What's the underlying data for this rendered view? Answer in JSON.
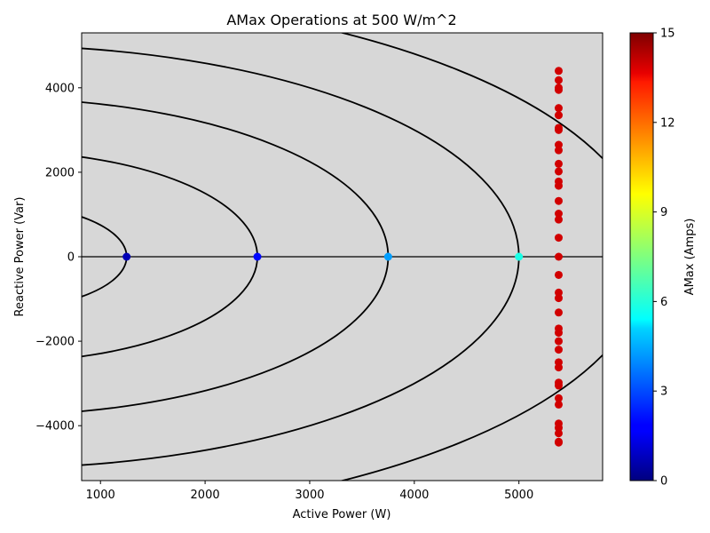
{
  "chart_data": {
    "type": "scatter",
    "title": "AMax Operations at 500 W/m^2",
    "xlabel": "Active Power (W)",
    "ylabel": "Reactive Power (Var)",
    "xlim": [
      820,
      5800
    ],
    "ylim": [
      -5300,
      5300
    ],
    "x_ticks": [
      1000,
      2000,
      3000,
      4000,
      5000
    ],
    "y_ticks": [
      -4000,
      -2000,
      0,
      2000,
      4000
    ],
    "y_tick_labels": [
      "−4000",
      "−2000",
      "0",
      "2000",
      "4000"
    ],
    "background_color": "#d7d7d7",
    "contour_radii": [
      1250,
      2500,
      3750,
      5000,
      6250
    ],
    "colorbar": {
      "label": "AMax (Amps)",
      "range": [
        0,
        15
      ],
      "ticks": [
        0,
        3,
        6,
        9,
        12,
        15
      ],
      "colormap": "jet"
    },
    "points": [
      {
        "x": 1250,
        "y": 0,
        "c": 0.8
      },
      {
        "x": 2500,
        "y": 0,
        "c": 2.0
      },
      {
        "x": 3750,
        "y": 0,
        "c": 4.2
      },
      {
        "x": 5000,
        "y": 0,
        "c": 6.0
      },
      {
        "x": 5380,
        "y": 4400,
        "c": 13.8
      },
      {
        "x": 5380,
        "y": 4180,
        "c": 13.8
      },
      {
        "x": 5380,
        "y": 4000,
        "c": 13.8
      },
      {
        "x": 5380,
        "y": 3950,
        "c": 13.8
      },
      {
        "x": 5380,
        "y": 3520,
        "c": 13.8
      },
      {
        "x": 5380,
        "y": 3350,
        "c": 13.8
      },
      {
        "x": 5380,
        "y": 3050,
        "c": 13.8
      },
      {
        "x": 5380,
        "y": 3000,
        "c": 13.8
      },
      {
        "x": 5380,
        "y": 2650,
        "c": 13.8
      },
      {
        "x": 5380,
        "y": 2520,
        "c": 13.8
      },
      {
        "x": 5380,
        "y": 2200,
        "c": 13.8
      },
      {
        "x": 5380,
        "y": 2020,
        "c": 13.8
      },
      {
        "x": 5380,
        "y": 1780,
        "c": 13.8
      },
      {
        "x": 5380,
        "y": 1680,
        "c": 13.8
      },
      {
        "x": 5380,
        "y": 1320,
        "c": 13.8
      },
      {
        "x": 5380,
        "y": 1020,
        "c": 13.8
      },
      {
        "x": 5380,
        "y": 880,
        "c": 13.8
      },
      {
        "x": 5380,
        "y": 450,
        "c": 13.8
      },
      {
        "x": 5380,
        "y": 0,
        "c": 13.8
      },
      {
        "x": 5380,
        "y": -430,
        "c": 13.8
      },
      {
        "x": 5380,
        "y": -850,
        "c": 13.8
      },
      {
        "x": 5380,
        "y": -980,
        "c": 13.8
      },
      {
        "x": 5380,
        "y": -1320,
        "c": 13.8
      },
      {
        "x": 5380,
        "y": -1700,
        "c": 13.8
      },
      {
        "x": 5380,
        "y": -1800,
        "c": 13.8
      },
      {
        "x": 5380,
        "y": -2000,
        "c": 13.8
      },
      {
        "x": 5380,
        "y": -2200,
        "c": 13.8
      },
      {
        "x": 5380,
        "y": -2500,
        "c": 13.8
      },
      {
        "x": 5380,
        "y": -2620,
        "c": 13.8
      },
      {
        "x": 5380,
        "y": -2980,
        "c": 13.8
      },
      {
        "x": 5380,
        "y": -3050,
        "c": 13.8
      },
      {
        "x": 5380,
        "y": -3350,
        "c": 13.8
      },
      {
        "x": 5380,
        "y": -3500,
        "c": 13.8
      },
      {
        "x": 5380,
        "y": -3950,
        "c": 13.8
      },
      {
        "x": 5380,
        "y": -4050,
        "c": 13.8
      },
      {
        "x": 5380,
        "y": -4180,
        "c": 13.8
      },
      {
        "x": 5380,
        "y": -4380,
        "c": 13.8
      },
      {
        "x": 5380,
        "y": -4400,
        "c": 13.8
      }
    ]
  }
}
